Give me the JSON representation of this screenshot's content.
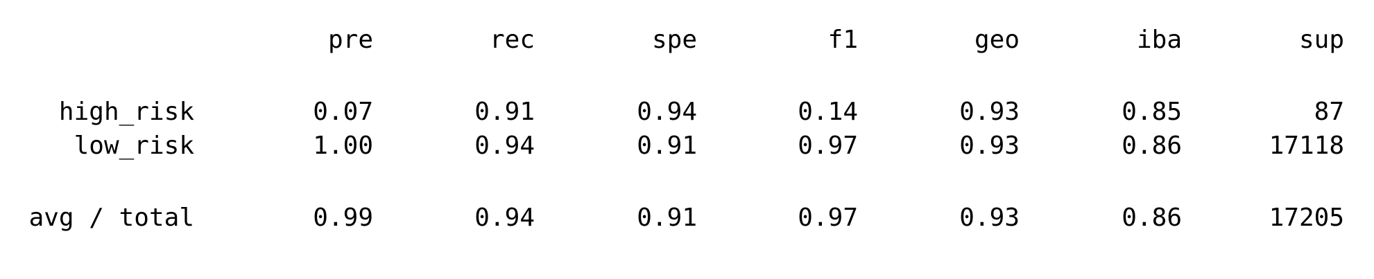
{
  "report": {
    "columns": [
      "pre",
      "rec",
      "spe",
      "f1",
      "geo",
      "iba",
      "sup"
    ],
    "rows": [
      {
        "label": "high_risk",
        "values": [
          "0.07",
          "0.91",
          "0.94",
          "0.14",
          "0.93",
          "0.85",
          "87"
        ]
      },
      {
        "label": "low_risk",
        "values": [
          "1.00",
          "0.94",
          "0.91",
          "0.97",
          "0.93",
          "0.86",
          "17118"
        ]
      }
    ],
    "avg_total": {
      "label": "avg / total",
      "values": [
        "0.99",
        "0.94",
        "0.91",
        "0.97",
        "0.93",
        "0.86",
        "17205"
      ]
    }
  }
}
